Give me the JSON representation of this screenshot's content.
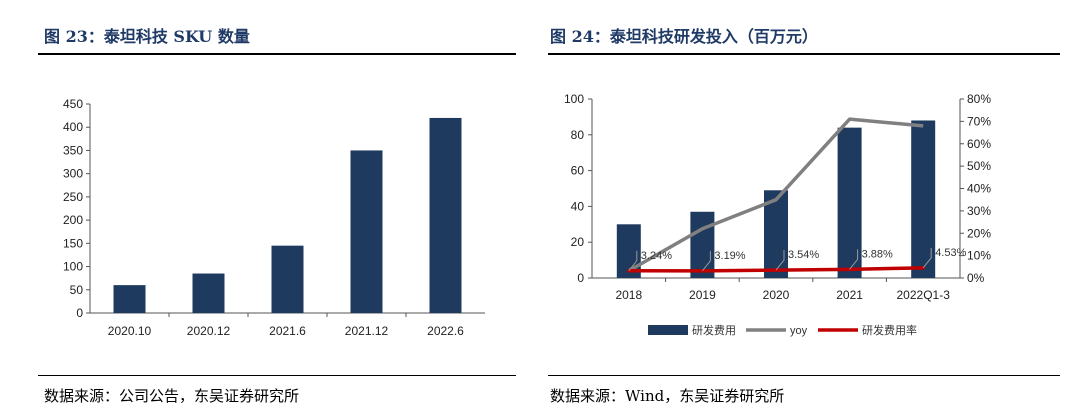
{
  "left": {
    "title": "图 23：泰坦科技 SKU 数量",
    "source": "数据来源：公司公告，东吴证券研究所"
  },
  "right": {
    "title": "图 24：泰坦科技研发投入（百万元）",
    "source": "数据来源：Wind，东吴证券研究所"
  },
  "chart_data": [
    {
      "type": "bar",
      "title": "",
      "categories": [
        "2020.10",
        "2020.12",
        "2021.6",
        "2021.12",
        "2022.6"
      ],
      "values": [
        60,
        85,
        145,
        350,
        420
      ],
      "ylim": [
        0,
        450
      ],
      "yticks": [
        0,
        50,
        100,
        150,
        200,
        250,
        300,
        350,
        400,
        450
      ],
      "grid": false,
      "colors": {
        "bar": "#1f3a5f"
      }
    },
    {
      "type": "bar",
      "title": "",
      "categories": [
        "2018",
        "2019",
        "2020",
        "2021",
        "2022Q1-3"
      ],
      "series": [
        {
          "name": "研发费用",
          "type": "bar",
          "axis": "left",
          "values": [
            30,
            37,
            49,
            84,
            88
          ],
          "color": "#1f3a5f"
        },
        {
          "name": "yoy",
          "type": "line",
          "axis": "right",
          "values": [
            null,
            22,
            35,
            71,
            68
          ],
          "color": "#808080"
        },
        {
          "name": "研发费用率",
          "type": "line",
          "axis": "right",
          "values": [
            3.24,
            3.19,
            3.54,
            3.88,
            4.53
          ],
          "color": "#c00000"
        }
      ],
      "ylim_left": [
        0,
        100
      ],
      "yticks_left": [
        0,
        20,
        40,
        60,
        80,
        100
      ],
      "ylim_right": [
        0,
        80
      ],
      "yticks_right": [
        "0%",
        "10%",
        "20%",
        "30%",
        "40%",
        "50%",
        "60%",
        "70%",
        "80%"
      ],
      "data_labels": [
        "3.24%",
        "3.19%",
        "3.54%",
        "3.88%",
        "4.53%"
      ],
      "legend": "bottom",
      "grid": false
    }
  ]
}
